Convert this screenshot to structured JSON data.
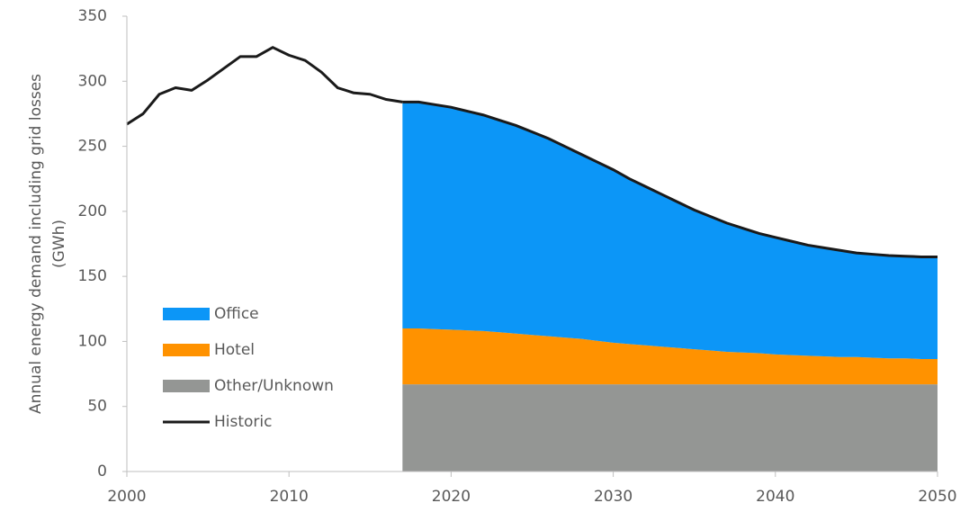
{
  "chart_data": {
    "type": "area",
    "stacked": true,
    "ylabel": [
      "Annual energy demand including grid losses",
      "(GWh)"
    ],
    "x": [
      2000,
      2001,
      2002,
      2003,
      2004,
      2005,
      2006,
      2007,
      2008,
      2009,
      2010,
      2011,
      2012,
      2013,
      2014,
      2015,
      2016,
      2017,
      2018,
      2019,
      2020,
      2021,
      2022,
      2023,
      2024,
      2025,
      2026,
      2027,
      2028,
      2029,
      2030,
      2031,
      2032,
      2033,
      2034,
      2035,
      2036,
      2037,
      2038,
      2039,
      2040,
      2041,
      2042,
      2043,
      2044,
      2045,
      2046,
      2047,
      2048,
      2049,
      2050
    ],
    "xlim": [
      2000,
      2050
    ],
    "xticks": [
      2000,
      2010,
      2020,
      2030,
      2040,
      2050
    ],
    "ylim": [
      0,
      350
    ],
    "yticks": [
      0,
      50,
      100,
      150,
      200,
      250,
      300,
      350
    ],
    "series": [
      {
        "name": "Office",
        "type": "area",
        "color": "#0c96f7",
        "values": [
          null,
          null,
          null,
          null,
          null,
          null,
          null,
          null,
          null,
          null,
          null,
          null,
          null,
          null,
          null,
          null,
          null,
          174,
          174,
          172.5,
          171,
          168.5,
          166,
          163,
          160,
          156,
          152,
          147,
          142,
          137.5,
          133,
          127,
          122,
          117,
          112,
          107,
          103,
          99,
          95.5,
          92,
          90,
          87.5,
          85,
          83.5,
          82,
          80,
          79.5,
          79,
          78.5,
          78.5,
          78.5
        ]
      },
      {
        "name": "Hotel",
        "type": "area",
        "color": "#ff9200",
        "values": [
          null,
          null,
          null,
          null,
          null,
          null,
          null,
          null,
          null,
          null,
          null,
          null,
          null,
          null,
          null,
          null,
          null,
          43,
          43,
          42.5,
          42,
          41.5,
          41,
          40,
          39,
          38,
          37,
          36,
          35,
          33.5,
          32,
          31,
          30,
          29,
          28,
          27,
          26,
          25,
          24.5,
          24,
          23,
          22.5,
          22,
          21.5,
          21,
          21,
          20.5,
          20,
          20,
          19.5,
          19.5
        ]
      },
      {
        "name": "Other/Unknown",
        "type": "area",
        "color": "#949694",
        "values": [
          null,
          null,
          null,
          null,
          null,
          null,
          null,
          null,
          null,
          null,
          null,
          null,
          null,
          null,
          null,
          null,
          null,
          67,
          67,
          67,
          67,
          67,
          67,
          67,
          67,
          67,
          67,
          67,
          67,
          67,
          67,
          67,
          67,
          67,
          67,
          67,
          67,
          67,
          67,
          67,
          67,
          67,
          67,
          67,
          67,
          67,
          67,
          67,
          67,
          67,
          67
        ]
      },
      {
        "name": "Historic",
        "type": "line",
        "color": "#1a1a1a",
        "values": [
          267,
          275,
          290,
          295,
          293,
          301,
          310,
          319,
          319,
          326,
          320,
          316,
          307,
          295,
          291,
          290,
          286,
          284,
          null,
          null,
          null,
          null,
          null,
          null,
          null,
          null,
          null,
          null,
          null,
          null,
          null,
          null,
          null,
          null,
          null,
          null,
          null,
          null,
          null,
          null,
          null,
          null,
          null,
          null,
          null,
          null,
          null,
          null,
          null,
          null,
          null
        ]
      }
    ]
  }
}
